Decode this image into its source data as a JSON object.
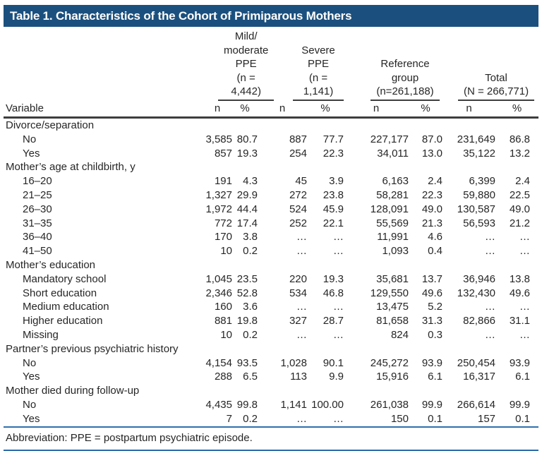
{
  "title_bar": {
    "text": "Table 1. Characteristics of the Cohort of Primiparous Mothers"
  },
  "table": {
    "variable_header": "Variable",
    "groups": [
      {
        "title": "Mild/\nmoderate\nPPE\n(n = 4,442)",
        "n_label": "n",
        "pct_label": "%"
      },
      {
        "title": "Severe PPE\n(n = 1,141)",
        "n_label": "n",
        "pct_label": "%"
      },
      {
        "title": "Reference\ngroup\n(n=261,188)",
        "n_label": "n",
        "pct_label": "%"
      },
      {
        "title": "Total\n(N = 266,771)",
        "n_label": "n",
        "pct_label": "%"
      }
    ],
    "rows": [
      {
        "type": "category",
        "label": "Divorce/separation"
      },
      {
        "type": "data",
        "label": "No",
        "values": [
          "3,585",
          "80.7",
          "887",
          "77.7",
          "227,177",
          "87.0",
          "231,649",
          "86.8"
        ]
      },
      {
        "type": "data",
        "label": "Yes",
        "values": [
          "857",
          "19.3",
          "254",
          "22.3",
          "34,011",
          "13.0",
          "35,122",
          "13.2"
        ]
      },
      {
        "type": "category",
        "label": "Mother’s age at childbirth, y"
      },
      {
        "type": "data",
        "label": "16–20",
        "values": [
          "191",
          "4.3",
          "45",
          "3.9",
          "6,163",
          "2.4",
          "6,399",
          "2.4"
        ]
      },
      {
        "type": "data",
        "label": "21–25",
        "values": [
          "1,327",
          "29.9",
          "272",
          "23.8",
          "58,281",
          "22.3",
          "59,880",
          "22.5"
        ]
      },
      {
        "type": "data",
        "label": "26–30",
        "values": [
          "1,972",
          "44.4",
          "524",
          "45.9",
          "128,091",
          "49.0",
          "130,587",
          "49.0"
        ]
      },
      {
        "type": "data",
        "label": "31–35",
        "values": [
          "772",
          "17.4",
          "252",
          "22.1",
          "55,569",
          "21.3",
          "56,593",
          "21.2"
        ]
      },
      {
        "type": "data",
        "label": "36–40",
        "values": [
          "170",
          "3.8",
          "…",
          "…",
          "11,991",
          "4.6",
          "…",
          "…"
        ]
      },
      {
        "type": "data",
        "label": "41–50",
        "values": [
          "10",
          "0.2",
          "…",
          "…",
          "1,093",
          "0.4",
          "…",
          "…"
        ]
      },
      {
        "type": "category",
        "label": "Mother’s education"
      },
      {
        "type": "data",
        "label": "Mandatory school",
        "values": [
          "1,045",
          "23.5",
          "220",
          "19.3",
          "35,681",
          "13.7",
          "36,946",
          "13.8"
        ]
      },
      {
        "type": "data",
        "label": "Short education",
        "values": [
          "2,346",
          "52.8",
          "534",
          "46.8",
          "129,550",
          "49.6",
          "132,430",
          "49.6"
        ]
      },
      {
        "type": "data",
        "label": "Medium education",
        "values": [
          "160",
          "3.6",
          "…",
          "…",
          "13,475",
          "5.2",
          "…",
          "…"
        ]
      },
      {
        "type": "data",
        "label": "Higher education",
        "values": [
          "881",
          "19.8",
          "327",
          "28.7",
          "81,658",
          "31.3",
          "82,866",
          "31.1"
        ]
      },
      {
        "type": "data",
        "label": "Missing",
        "values": [
          "10",
          "0.2",
          "…",
          "…",
          "824",
          "0.3",
          "…",
          "…"
        ]
      },
      {
        "type": "category",
        "label": "Partner’s previous psychiatric history"
      },
      {
        "type": "data",
        "label": "No",
        "values": [
          "4,154",
          "93.5",
          "1,028",
          "90.1",
          "245,272",
          "93.9",
          "250,454",
          "93.9"
        ]
      },
      {
        "type": "data",
        "label": "Yes",
        "values": [
          "288",
          "6.5",
          "113",
          "9.9",
          "15,916",
          "6.1",
          "16,317",
          "6.1"
        ]
      },
      {
        "type": "category",
        "label": "Mother died during follow-up"
      },
      {
        "type": "data",
        "label": "No",
        "values": [
          "4,435",
          "99.8",
          "1,141",
          "100.00",
          "261,038",
          "99.9",
          "266,614",
          "99.9"
        ]
      },
      {
        "type": "data",
        "label": "Yes",
        "values": [
          "7",
          "0.2",
          "…",
          "…",
          "150",
          "0.1",
          "157",
          "0.1"
        ]
      }
    ]
  },
  "footnote": "Abbreviation: PPE = postpartum psychiatric episode.",
  "colors": {
    "header_bar": "#1b507e",
    "rule_dark": "#3e3e3e",
    "rule_blue": "#2e6fad",
    "text": "#262626"
  }
}
